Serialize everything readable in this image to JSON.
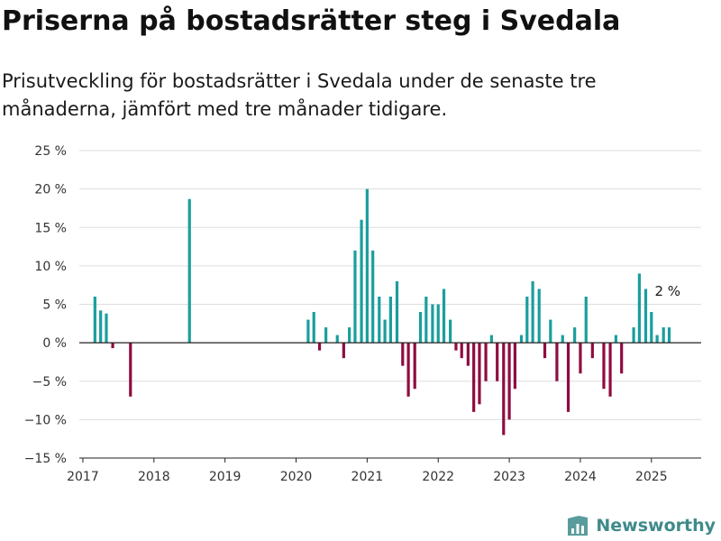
{
  "header": {
    "title": "Priserna på bostadsrätter steg i Svedala",
    "subtitle": "Prisutveckling för bostadsrätter i Svedala under de senaste tre månaderna, jämfört med tre månader tidigare."
  },
  "brand": {
    "name": "Newsworthy",
    "logo_icon": "bar-chart-logo-icon"
  },
  "colors": {
    "positive": "#1a9e9e",
    "negative": "#8f0c40",
    "grid": "#dddddd",
    "axis": "#222222",
    "brand": "#3f8a8a"
  },
  "chart_data": {
    "type": "bar",
    "title": "Priserna på bostadsrätter steg i Svedala",
    "xlabel": "",
    "ylabel": "",
    "ylim": [
      -15,
      25
    ],
    "xlim": [
      2016.95,
      2025.7
    ],
    "grid": true,
    "y_ticks": [
      25,
      20,
      15,
      10,
      5,
      0,
      -5,
      -10,
      -15
    ],
    "y_tick_labels": [
      "25 %",
      "20 %",
      "15 %",
      "10 %",
      "5 %",
      "0 %",
      "−5 %",
      "−10 %",
      "−15 %"
    ],
    "x_ticks": [
      2017,
      2018,
      2019,
      2020,
      2021,
      2022,
      2023,
      2024,
      2025
    ],
    "x_tick_labels": [
      "2017",
      "2018",
      "2019",
      "2020",
      "2021",
      "2022",
      "2023",
      "2024",
      "2025"
    ],
    "annotation": {
      "text": "2 %",
      "x": 2025.25,
      "y": 2
    },
    "points": [
      {
        "x": 2017.17,
        "y": 6
      },
      {
        "x": 2017.25,
        "y": 4.2
      },
      {
        "x": 2017.33,
        "y": 3.8
      },
      {
        "x": 2017.42,
        "y": -0.7
      },
      {
        "x": 2017.67,
        "y": -7
      },
      {
        "x": 2018.5,
        "y": 18.7
      },
      {
        "x": 2020.17,
        "y": 3
      },
      {
        "x": 2020.25,
        "y": 4
      },
      {
        "x": 2020.33,
        "y": -1
      },
      {
        "x": 2020.42,
        "y": 2
      },
      {
        "x": 2020.58,
        "y": 1
      },
      {
        "x": 2020.67,
        "y": -2
      },
      {
        "x": 2020.75,
        "y": 2
      },
      {
        "x": 2020.83,
        "y": 12
      },
      {
        "x": 2020.92,
        "y": 16
      },
      {
        "x": 2021.0,
        "y": 20
      },
      {
        "x": 2021.08,
        "y": 12
      },
      {
        "x": 2021.17,
        "y": 6
      },
      {
        "x": 2021.25,
        "y": 3
      },
      {
        "x": 2021.33,
        "y": 6
      },
      {
        "x": 2021.42,
        "y": 8
      },
      {
        "x": 2021.5,
        "y": -3
      },
      {
        "x": 2021.58,
        "y": -7
      },
      {
        "x": 2021.67,
        "y": -6
      },
      {
        "x": 2021.75,
        "y": 4
      },
      {
        "x": 2021.83,
        "y": 6
      },
      {
        "x": 2021.92,
        "y": 5
      },
      {
        "x": 2022.0,
        "y": 5
      },
      {
        "x": 2022.08,
        "y": 7
      },
      {
        "x": 2022.17,
        "y": 3
      },
      {
        "x": 2022.25,
        "y": -1
      },
      {
        "x": 2022.33,
        "y": -2
      },
      {
        "x": 2022.42,
        "y": -3
      },
      {
        "x": 2022.5,
        "y": -9
      },
      {
        "x": 2022.58,
        "y": -8
      },
      {
        "x": 2022.67,
        "y": -5
      },
      {
        "x": 2022.75,
        "y": 1
      },
      {
        "x": 2022.83,
        "y": -5
      },
      {
        "x": 2022.92,
        "y": -12
      },
      {
        "x": 2023.0,
        "y": -10
      },
      {
        "x": 2023.08,
        "y": -6
      },
      {
        "x": 2023.17,
        "y": 1
      },
      {
        "x": 2023.25,
        "y": 6
      },
      {
        "x": 2023.33,
        "y": 8
      },
      {
        "x": 2023.42,
        "y": 7
      },
      {
        "x": 2023.5,
        "y": -2
      },
      {
        "x": 2023.58,
        "y": 3
      },
      {
        "x": 2023.67,
        "y": -5
      },
      {
        "x": 2023.75,
        "y": 1
      },
      {
        "x": 2023.83,
        "y": -9
      },
      {
        "x": 2023.92,
        "y": 2
      },
      {
        "x": 2024.0,
        "y": -4
      },
      {
        "x": 2024.08,
        "y": 6
      },
      {
        "x": 2024.17,
        "y": -2
      },
      {
        "x": 2024.33,
        "y": -6
      },
      {
        "x": 2024.42,
        "y": -7
      },
      {
        "x": 2024.5,
        "y": 1
      },
      {
        "x": 2024.58,
        "y": -4
      },
      {
        "x": 2024.75,
        "y": 2
      },
      {
        "x": 2024.83,
        "y": 9
      },
      {
        "x": 2024.92,
        "y": 7
      },
      {
        "x": 2025.0,
        "y": 4
      },
      {
        "x": 2025.08,
        "y": 1
      },
      {
        "x": 2025.17,
        "y": 2
      },
      {
        "x": 2025.25,
        "y": 2
      }
    ]
  }
}
